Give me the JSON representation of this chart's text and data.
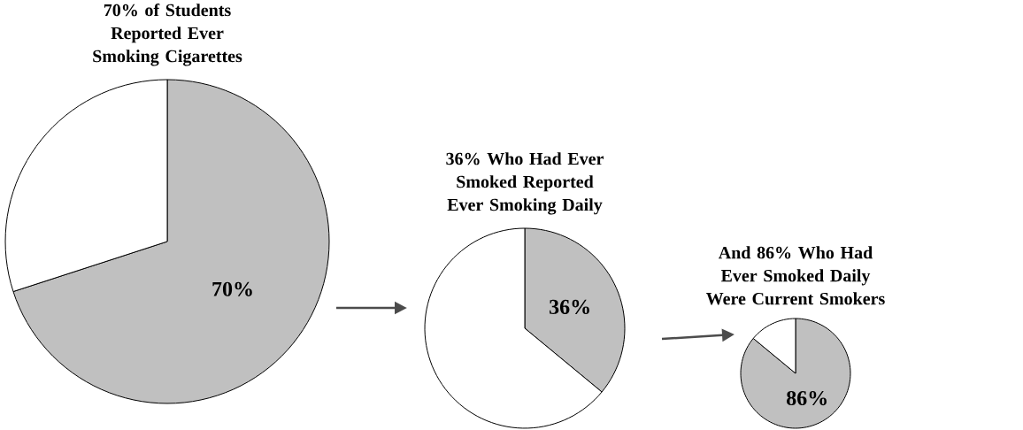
{
  "chart_data": [
    {
      "type": "pie",
      "title": "70% of Students Reported Ever Smoking Cigarettes",
      "categories": [
        null,
        null
      ],
      "values": [
        70,
        30
      ],
      "colors": [
        "#c0c0c0",
        "#ffffff"
      ],
      "value_labels": [
        "70%",
        null
      ]
    },
    {
      "type": "pie",
      "title": "36% Who Had Ever Smoked Reported Ever Smoking Daily",
      "categories": [
        null,
        null
      ],
      "values": [
        36,
        64
      ],
      "colors": [
        "#c0c0c0",
        "#ffffff"
      ],
      "value_labels": [
        "36%",
        null
      ]
    },
    {
      "type": "pie",
      "title": "And 86% Who Had Ever Smoked Daily Were Current Smokers",
      "categories": [
        null,
        null
      ],
      "values": [
        86,
        14
      ],
      "colors": [
        "#c0c0c0",
        "#ffffff"
      ],
      "value_labels": [
        "86%",
        null
      ]
    }
  ]
}
